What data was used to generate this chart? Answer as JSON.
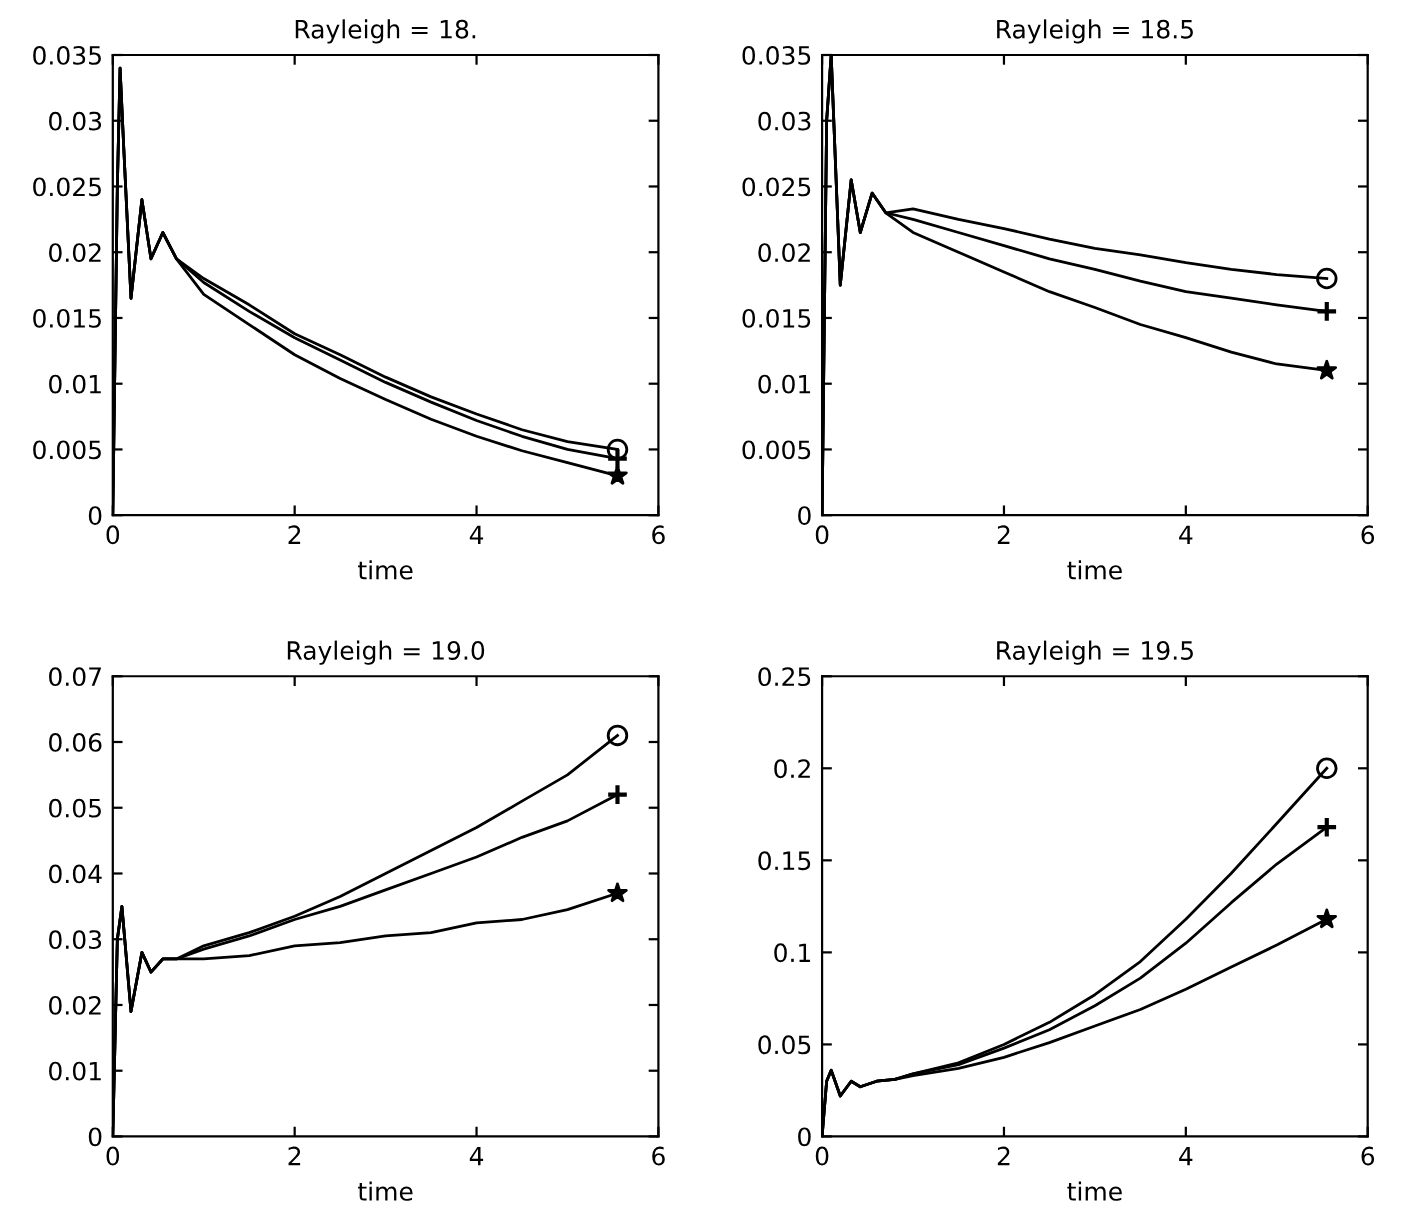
{
  "chart_data": [
    {
      "type": "line",
      "title": "Rayleigh = 18.",
      "xlabel": "time",
      "xlim": [
        0,
        6
      ],
      "xticks": [
        0,
        2,
        4,
        6
      ],
      "ylim": [
        0,
        0.035
      ],
      "yticks": [
        0,
        0.005,
        0.01,
        0.015,
        0.02,
        0.025,
        0.03,
        0.035
      ],
      "grid": false,
      "line_style": "solid",
      "x": [
        0,
        0.05,
        0.08,
        0.12,
        0.2,
        0.32,
        0.42,
        0.55,
        0.7,
        1,
        1.5,
        2,
        2.5,
        3,
        3.5,
        4,
        4.5,
        5,
        5.55
      ],
      "series": [
        {
          "color": "#000000",
          "values": [
            0,
            0.025,
            0.034,
            0.028,
            0.0165,
            0.024,
            0.0195,
            0.0215,
            0.0195,
            0.018,
            0.016,
            0.0138,
            0.0122,
            0.0105,
            0.009,
            0.0077,
            0.0065,
            0.0056,
            0.005
          ]
        },
        {
          "color": "#000000",
          "values": [
            0,
            0.025,
            0.034,
            0.028,
            0.0165,
            0.024,
            0.0195,
            0.0215,
            0.0195,
            0.0177,
            0.0155,
            0.0135,
            0.0118,
            0.0101,
            0.0086,
            0.0072,
            0.006,
            0.005,
            0.0043
          ]
        },
        {
          "color": "#000000",
          "values": [
            0,
            0.025,
            0.034,
            0.028,
            0.0165,
            0.024,
            0.0195,
            0.0215,
            0.0195,
            0.0168,
            0.0145,
            0.0122,
            0.0104,
            0.0088,
            0.0073,
            0.006,
            0.0049,
            0.004,
            0.003
          ]
        },
        {
          "type": "scatter",
          "marker": "circle",
          "color": "#000000",
          "values": [
            null,
            null,
            null,
            null,
            null,
            null,
            null,
            null,
            null,
            null,
            null,
            null,
            null,
            null,
            null,
            null,
            null,
            null,
            0.005
          ]
        },
        {
          "type": "scatter",
          "marker": "cross",
          "color": "#000000",
          "values": [
            null,
            null,
            null,
            null,
            null,
            null,
            null,
            null,
            null,
            null,
            null,
            null,
            null,
            null,
            null,
            null,
            null,
            null,
            0.0043
          ]
        },
        {
          "type": "scatter",
          "marker": "star",
          "color": "#000000",
          "values": [
            null,
            null,
            null,
            null,
            null,
            null,
            null,
            null,
            null,
            null,
            null,
            null,
            null,
            null,
            null,
            null,
            null,
            null,
            0.003
          ]
        }
      ]
    },
    {
      "type": "line",
      "title": "Rayleigh = 18.5",
      "xlabel": "time",
      "xlim": [
        0,
        6
      ],
      "xticks": [
        0,
        2,
        4,
        6
      ],
      "ylim": [
        0,
        0.035
      ],
      "yticks": [
        0,
        0.005,
        0.01,
        0.015,
        0.02,
        0.025,
        0.03,
        0.035
      ],
      "grid": false,
      "line_style": "solid",
      "x": [
        0,
        0.05,
        0.1,
        0.2,
        0.32,
        0.42,
        0.55,
        0.7,
        1,
        1.5,
        2,
        2.5,
        3,
        3.5,
        4,
        4.5,
        5,
        5.55
      ],
      "series": [
        {
          "color": "#000000",
          "values": [
            0,
            0.03,
            0.035,
            0.0175,
            0.0255,
            0.0215,
            0.0245,
            0.023,
            0.0233,
            0.0225,
            0.0218,
            0.021,
            0.0203,
            0.0198,
            0.0192,
            0.0187,
            0.0183,
            0.018
          ]
        },
        {
          "color": "#000000",
          "values": [
            0,
            0.03,
            0.035,
            0.0175,
            0.0255,
            0.0215,
            0.0245,
            0.023,
            0.0225,
            0.0215,
            0.0205,
            0.0195,
            0.0187,
            0.0178,
            0.017,
            0.0165,
            0.016,
            0.0155
          ]
        },
        {
          "color": "#000000",
          "values": [
            0,
            0.03,
            0.035,
            0.0175,
            0.0255,
            0.0215,
            0.0245,
            0.023,
            0.0215,
            0.02,
            0.0185,
            0.017,
            0.0158,
            0.0145,
            0.0135,
            0.0124,
            0.0115,
            0.011
          ]
        },
        {
          "type": "scatter",
          "marker": "circle",
          "color": "#000000",
          "values": [
            null,
            null,
            null,
            null,
            null,
            null,
            null,
            null,
            null,
            null,
            null,
            null,
            null,
            null,
            null,
            null,
            null,
            0.018
          ]
        },
        {
          "type": "scatter",
          "marker": "cross",
          "color": "#000000",
          "values": [
            null,
            null,
            null,
            null,
            null,
            null,
            null,
            null,
            null,
            null,
            null,
            null,
            null,
            null,
            null,
            null,
            null,
            0.0155
          ]
        },
        {
          "type": "scatter",
          "marker": "star",
          "color": "#000000",
          "values": [
            null,
            null,
            null,
            null,
            null,
            null,
            null,
            null,
            null,
            null,
            null,
            null,
            null,
            null,
            null,
            null,
            null,
            0.011
          ]
        }
      ]
    },
    {
      "type": "line",
      "title": "Rayleigh = 19.0",
      "xlabel": "time",
      "xlim": [
        0,
        6
      ],
      "xticks": [
        0,
        2,
        4,
        6
      ],
      "ylim": [
        0,
        0.07
      ],
      "yticks": [
        0,
        0.01,
        0.02,
        0.03,
        0.04,
        0.05,
        0.06,
        0.07
      ],
      "grid": false,
      "line_style": "solid",
      "x": [
        0,
        0.05,
        0.1,
        0.2,
        0.32,
        0.42,
        0.55,
        0.7,
        1,
        1.5,
        2,
        2.5,
        3,
        3.5,
        4,
        4.5,
        5,
        5.55
      ],
      "series": [
        {
          "color": "#000000",
          "values": [
            0,
            0.03,
            0.035,
            0.019,
            0.028,
            0.025,
            0.027,
            0.027,
            0.029,
            0.031,
            0.0335,
            0.0365,
            0.04,
            0.0435,
            0.047,
            0.051,
            0.055,
            0.061
          ]
        },
        {
          "color": "#000000",
          "values": [
            0,
            0.03,
            0.035,
            0.019,
            0.028,
            0.025,
            0.027,
            0.027,
            0.0285,
            0.0305,
            0.033,
            0.035,
            0.0375,
            0.04,
            0.0425,
            0.0455,
            0.048,
            0.052
          ]
        },
        {
          "color": "#000000",
          "values": [
            0,
            0.03,
            0.035,
            0.019,
            0.028,
            0.025,
            0.027,
            0.027,
            0.027,
            0.0275,
            0.029,
            0.0295,
            0.0305,
            0.031,
            0.0325,
            0.033,
            0.0345,
            0.037
          ]
        },
        {
          "type": "scatter",
          "marker": "circle",
          "color": "#000000",
          "values": [
            null,
            null,
            null,
            null,
            null,
            null,
            null,
            null,
            null,
            null,
            null,
            null,
            null,
            null,
            null,
            null,
            null,
            0.061
          ]
        },
        {
          "type": "scatter",
          "marker": "cross",
          "color": "#000000",
          "values": [
            null,
            null,
            null,
            null,
            null,
            null,
            null,
            null,
            null,
            null,
            null,
            null,
            null,
            null,
            null,
            null,
            null,
            0.052
          ]
        },
        {
          "type": "scatter",
          "marker": "star",
          "color": "#000000",
          "values": [
            null,
            null,
            null,
            null,
            null,
            null,
            null,
            null,
            null,
            null,
            null,
            null,
            null,
            null,
            null,
            null,
            null,
            0.037
          ]
        }
      ]
    },
    {
      "type": "line",
      "title": "Rayleigh = 19.5",
      "xlabel": "time",
      "xlim": [
        0,
        6
      ],
      "xticks": [
        0,
        2,
        4,
        6
      ],
      "ylim": [
        0,
        0.25
      ],
      "yticks": [
        0,
        0.05,
        0.1,
        0.15,
        0.2,
        0.25
      ],
      "grid": false,
      "line_style": "solid",
      "x": [
        0,
        0.05,
        0.1,
        0.2,
        0.32,
        0.42,
        0.6,
        0.8,
        1,
        1.5,
        2,
        2.5,
        3,
        3.5,
        4,
        4.5,
        5,
        5.55
      ],
      "series": [
        {
          "color": "#000000",
          "values": [
            0,
            0.03,
            0.036,
            0.022,
            0.03,
            0.027,
            0.03,
            0.031,
            0.034,
            0.04,
            0.05,
            0.062,
            0.077,
            0.095,
            0.118,
            0.143,
            0.17,
            0.2
          ]
        },
        {
          "color": "#000000",
          "values": [
            0,
            0.03,
            0.036,
            0.022,
            0.03,
            0.027,
            0.03,
            0.031,
            0.034,
            0.039,
            0.048,
            0.058,
            0.071,
            0.086,
            0.105,
            0.127,
            0.148,
            0.168
          ]
        },
        {
          "color": "#000000",
          "values": [
            0,
            0.03,
            0.036,
            0.022,
            0.03,
            0.027,
            0.03,
            0.031,
            0.033,
            0.037,
            0.043,
            0.051,
            0.06,
            0.069,
            0.08,
            0.092,
            0.104,
            0.118
          ]
        },
        {
          "type": "scatter",
          "marker": "circle",
          "color": "#000000",
          "values": [
            null,
            null,
            null,
            null,
            null,
            null,
            null,
            null,
            null,
            null,
            null,
            null,
            null,
            null,
            null,
            null,
            null,
            0.2
          ]
        },
        {
          "type": "scatter",
          "marker": "cross",
          "color": "#000000",
          "values": [
            null,
            null,
            null,
            null,
            null,
            null,
            null,
            null,
            null,
            null,
            null,
            null,
            null,
            null,
            null,
            null,
            null,
            0.168
          ]
        },
        {
          "type": "scatter",
          "marker": "star",
          "color": "#000000",
          "values": [
            null,
            null,
            null,
            null,
            null,
            null,
            null,
            null,
            null,
            null,
            null,
            null,
            null,
            null,
            null,
            null,
            null,
            0.118
          ]
        }
      ]
    }
  ]
}
